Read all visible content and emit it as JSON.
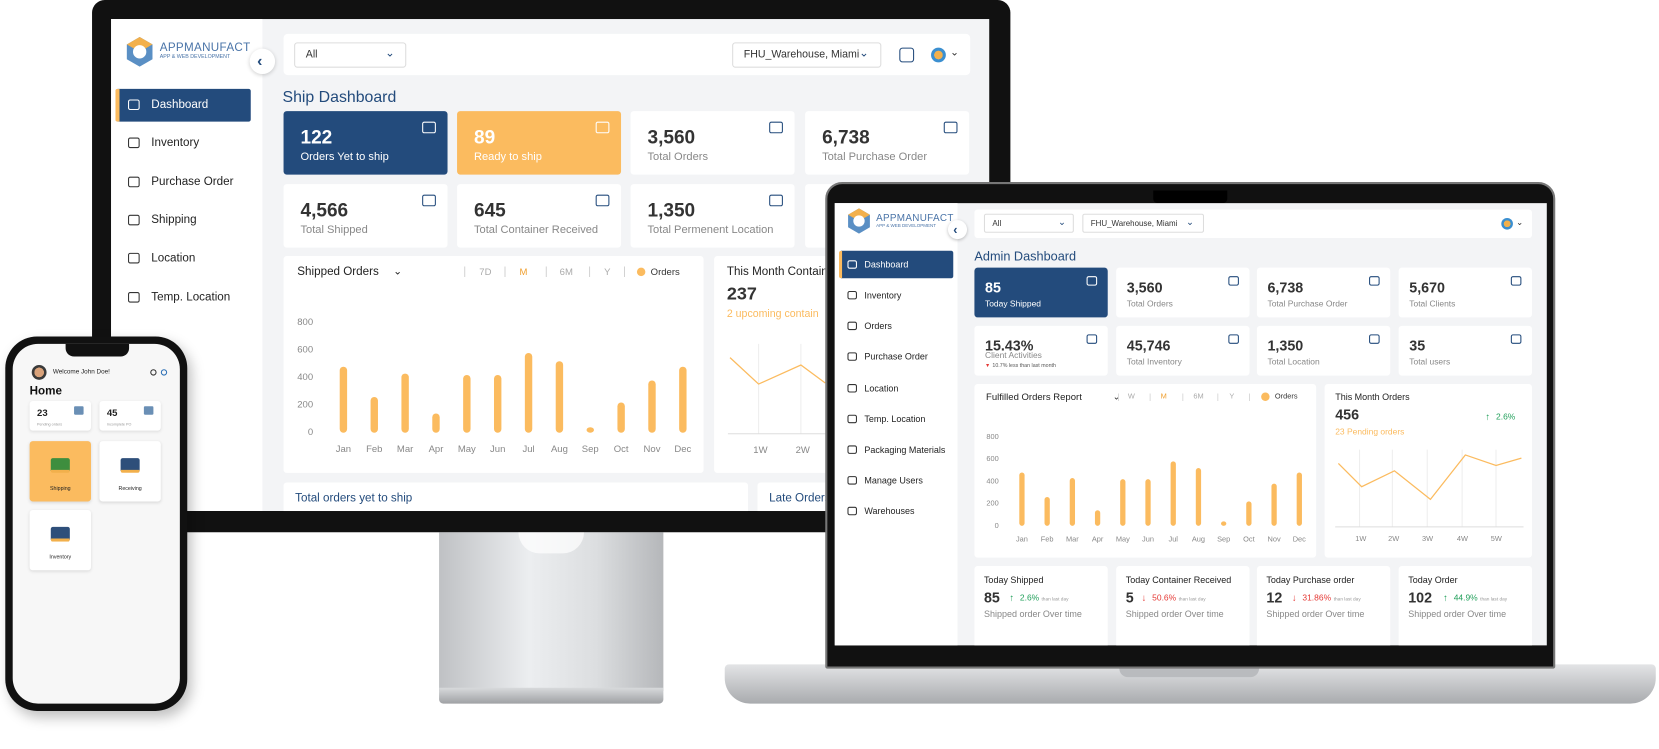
{
  "desktop": {
    "logo": {
      "name": "APPMANUFACT",
      "tagline": "APP & WEB DEVELOPMENT"
    },
    "filter": "All",
    "warehouse": "FHU_Warehouse, Miami",
    "nav": [
      "Dashboard",
      "Inventory",
      "Purchase Order",
      "Shipping",
      "Location",
      "Temp. Location"
    ],
    "title": "Ship Dashboard",
    "cards": [
      {
        "value": "122",
        "label": "Orders Yet to ship"
      },
      {
        "value": "89",
        "label": "Ready to ship"
      },
      {
        "value": "3,560",
        "label": "Total Orders"
      },
      {
        "value": "6,738",
        "label": "Total Purchase Order"
      },
      {
        "value": "4,566",
        "label": "Total Shipped"
      },
      {
        "value": "645",
        "label": "Total Container Received"
      },
      {
        "value": "1,350",
        "label": "Total Permenent Location"
      }
    ],
    "chart": {
      "type": "bar",
      "title": "Shipped Orders",
      "ranges": [
        "7D",
        "M",
        "6M",
        "Y"
      ],
      "legend": "Orders",
      "color": "#fbbb5f",
      "categories": [
        "Jan",
        "Feb",
        "Mar",
        "Apr",
        "May",
        "Jun",
        "Jul",
        "Aug",
        "Sep",
        "Oct",
        "Nov",
        "Dec"
      ],
      "values": [
        480,
        260,
        430,
        140,
        420,
        420,
        580,
        520,
        40,
        220,
        380,
        480
      ],
      "ylim": [
        0,
        800
      ],
      "yticks": [
        0,
        200,
        400,
        600,
        800
      ]
    },
    "side_panel": {
      "title": "This Month Containe",
      "value": "237",
      "note": "2 upcoming contain",
      "x": [
        "1W",
        "2W"
      ]
    },
    "bottom": [
      "Total orders yet to ship",
      "Late Orders"
    ]
  },
  "laptop": {
    "logo": {
      "name": "APPMANUFACT",
      "tagline": "APP & WEB DEVELOPMENT"
    },
    "filter": "All",
    "warehouse": "FHU_Warehouse, Miami",
    "nav": [
      "Dashboard",
      "Inventory",
      "Orders",
      "Purchase Order",
      "Location",
      "Temp. Location",
      "Packaging Materials",
      "Manage Users",
      "Warehouses"
    ],
    "title": "Admin Dashboard",
    "cards": [
      {
        "value": "85",
        "label": "Today Shipped"
      },
      {
        "value": "3,560",
        "label": "Total Orders"
      },
      {
        "value": "6,738",
        "label": "Total Purchase Order"
      },
      {
        "value": "5,670",
        "label": "Total Clients"
      },
      {
        "value": "15.43%",
        "label": "Client Activities",
        "note": "10.7% less than last month"
      },
      {
        "value": "45,746",
        "label": "Total Inventory"
      },
      {
        "value": "1,350",
        "label": "Total Location"
      },
      {
        "value": "35",
        "label": "Total users"
      }
    ],
    "chart": {
      "type": "bar",
      "title": "Fulfilled Orders Report",
      "ranges": [
        "W",
        "M",
        "6M",
        "Y"
      ],
      "legend": "Orders",
      "color": "#fbbb5f",
      "categories": [
        "Jan",
        "Feb",
        "Mar",
        "Apr",
        "May",
        "Jun",
        "Jul",
        "Aug",
        "Sep",
        "Oct",
        "Nov",
        "Dec"
      ],
      "values": [
        480,
        260,
        430,
        140,
        420,
        420,
        580,
        520,
        40,
        220,
        380,
        480
      ],
      "ylim": [
        0,
        800
      ],
      "yticks": [
        0,
        200,
        400,
        600,
        800
      ]
    },
    "side_panel": {
      "title": "This Month Orders",
      "value": "456",
      "change": "2.6%",
      "note": "23 Pending orders",
      "x": [
        "1W",
        "2W",
        "3W",
        "4W",
        "5W"
      ]
    },
    "daily": [
      {
        "title": "Today Shipped",
        "value": "85",
        "change": "2.6%",
        "trend": "up",
        "compare": "than last day",
        "subtitle": "Shipped order Over time"
      },
      {
        "title": "Today Container Received",
        "value": "5",
        "change": "50.6%",
        "trend": "down",
        "compare": "than last day",
        "subtitle": "Shipped order Over time"
      },
      {
        "title": "Today Purchase order",
        "value": "12",
        "change": "31.86%",
        "trend": "down",
        "compare": "than last day",
        "subtitle": "Shipped order Over time"
      },
      {
        "title": "Today Order",
        "value": "102",
        "change": "44.9%",
        "trend": "up",
        "compare": "than last day",
        "subtitle": "Shipped order Over time"
      }
    ]
  },
  "phone": {
    "welcome": "Welcome John Doe!",
    "title": "Home",
    "stats": [
      {
        "value": "23",
        "label": "Pending orders"
      },
      {
        "value": "45",
        "label": "Incomplete PO"
      }
    ],
    "tiles": [
      "Shipping",
      "Receiving",
      "Inventory"
    ]
  }
}
